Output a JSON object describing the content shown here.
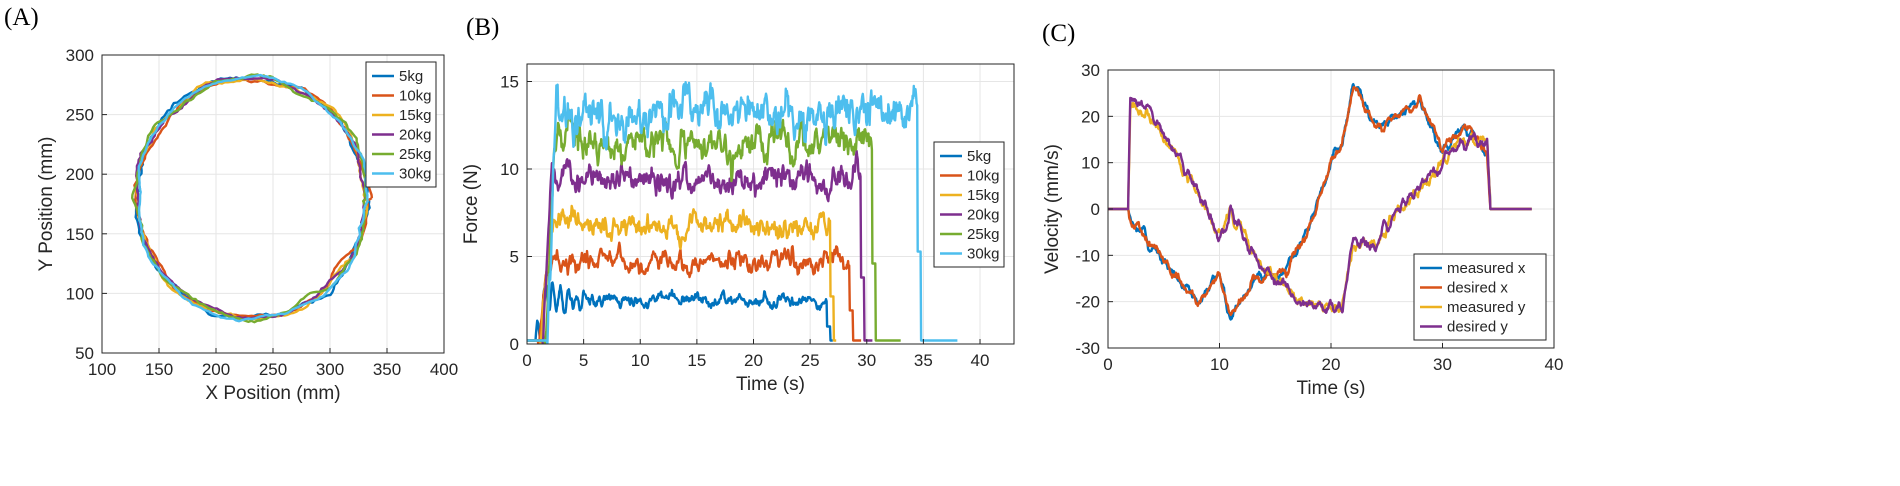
{
  "panels": {
    "a": "(A)",
    "b": "(B)",
    "c": "(C)"
  },
  "colors": {
    "blue": "#0072BD",
    "orange": "#D95319",
    "yellow": "#EDB120",
    "purple": "#7E2F8E",
    "green": "#77AC30",
    "cyan": "#4DBEEE"
  },
  "chart_data": [
    {
      "type": "line",
      "panel": "(A)",
      "title": "",
      "xlabel": "X Position (mm)",
      "ylabel": "Y Position (mm)",
      "xlim": [
        100,
        400
      ],
      "ylim": [
        50,
        300
      ],
      "xticks": [
        100,
        150,
        200,
        250,
        300,
        350,
        400
      ],
      "yticks": [
        50,
        100,
        150,
        200,
        250,
        300
      ],
      "grid": true,
      "legend_position": "top-right",
      "series": [
        {
          "name": "5kg",
          "color": "#0072BD",
          "center": [
            231,
            180
          ],
          "radius": 101,
          "jitter": 4.0,
          "seed": 1
        },
        {
          "name": "10kg",
          "color": "#D95319",
          "center": [
            231,
            180
          ],
          "radius": 100,
          "jitter": 3.0,
          "seed": 2
        },
        {
          "name": "15kg",
          "color": "#EDB120",
          "center": [
            231,
            180
          ],
          "radius": 101,
          "jitter": 3.5,
          "seed": 3
        },
        {
          "name": "20kg",
          "color": "#7E2F8E",
          "center": [
            231,
            180
          ],
          "radius": 100,
          "jitter": 3.0,
          "seed": 4
        },
        {
          "name": "25kg",
          "color": "#77AC30",
          "center": [
            231,
            180
          ],
          "radius": 101,
          "jitter": 3.5,
          "seed": 5
        },
        {
          "name": "30kg",
          "color": "#4DBEEE",
          "center": [
            231,
            180
          ],
          "radius": 101,
          "jitter": 3.0,
          "seed": 6
        }
      ]
    },
    {
      "type": "line",
      "panel": "(B)",
      "title": "",
      "xlabel": "Time (s)",
      "ylabel": "Force (N)",
      "xlim": [
        0,
        43
      ],
      "ylim": [
        0,
        16
      ],
      "xticks": [
        0,
        5,
        10,
        15,
        20,
        25,
        30,
        35,
        40
      ],
      "yticks": [
        0,
        5,
        10,
        15
      ],
      "grid": true,
      "legend_position": "right",
      "series": [
        {
          "name": "5kg",
          "color": "#0072BD",
          "mean": 2.5,
          "amplitude": 0.45,
          "start": 0.8,
          "end": 26.5,
          "tail_end": 27.0,
          "seed": 11
        },
        {
          "name": "10kg",
          "color": "#D95319",
          "mean": 4.8,
          "amplitude": 0.7,
          "start": 1.0,
          "end": 28.5,
          "tail_end": 29.5,
          "seed": 12
        },
        {
          "name": "15kg",
          "color": "#EDB120",
          "mean": 6.8,
          "amplitude": 0.9,
          "start": 1.2,
          "end": 26.8,
          "tail_end": 27.3,
          "seed": 13
        },
        {
          "name": "20kg",
          "color": "#7E2F8E",
          "mean": 9.5,
          "amplitude": 1.0,
          "start": 1.4,
          "end": 29.5,
          "tail_end": 30.5,
          "seed": 14
        },
        {
          "name": "25kg",
          "color": "#77AC30",
          "mean": 11.5,
          "amplitude": 1.3,
          "start": 1.6,
          "end": 30.5,
          "tail_end": 33.0,
          "seed": 15
        },
        {
          "name": "30kg",
          "color": "#4DBEEE",
          "mean": 13.2,
          "amplitude": 1.6,
          "start": 1.8,
          "end": 34.5,
          "tail_end": 38.0,
          "seed": 16
        }
      ]
    },
    {
      "type": "line",
      "panel": "(C)",
      "title": "",
      "xlabel": "Time (s)",
      "ylabel": "Velocity (mm/s)",
      "xlim": [
        0,
        40
      ],
      "ylim": [
        -30,
        30
      ],
      "xticks": [
        0,
        10,
        20,
        30,
        40
      ],
      "yticks": [
        -30,
        -20,
        -10,
        0,
        10,
        20,
        30
      ],
      "grid": true,
      "legend_position": "bottom-right",
      "series": [
        {
          "name": "measured x",
          "color": "#0072BD",
          "component": "x",
          "noise": 1.0,
          "seed": 21,
          "x": [
            0,
            1.8,
            2.0,
            4.0,
            6.0,
            8.0,
            10.0,
            11.0,
            13.0,
            15.0,
            16.0,
            18.0,
            20.0,
            21.0,
            22.0,
            24.0,
            26.0,
            28.0,
            30.0,
            32.0,
            34.0,
            34.3,
            38.0
          ],
          "y": [
            0,
            0,
            -2,
            -8,
            -14,
            -20,
            -14,
            -24,
            -15,
            -14,
            -13,
            -5,
            10,
            14,
            27,
            18,
            20,
            23,
            13,
            18,
            12,
            0,
            0
          ]
        },
        {
          "name": "desired x",
          "color": "#D95319",
          "component": "x",
          "noise": 1.0,
          "seed": 22,
          "x": [
            0,
            1.8,
            2.0,
            4.0,
            6.0,
            8.0,
            10.0,
            11.0,
            13.0,
            15.0,
            16.0,
            18.0,
            20.0,
            21.0,
            22.0,
            24.0,
            26.0,
            28.0,
            30.0,
            32.0,
            34.0,
            34.3,
            38.0
          ],
          "y": [
            0,
            0,
            -2,
            -8,
            -14,
            -20,
            -14,
            -24,
            -15,
            -14,
            -13,
            -5,
            10,
            14,
            27,
            18,
            20,
            23,
            13,
            18,
            12,
            0,
            0
          ]
        },
        {
          "name": "measured y",
          "color": "#EDB120",
          "component": "y",
          "noise": 1.1,
          "seed": 23,
          "x": [
            0,
            1.8,
            2.0,
            4.0,
            6.0,
            8.0,
            10.0,
            11.0,
            13.0,
            15.0,
            17.0,
            19.0,
            21.0,
            22.0,
            24.0,
            26.0,
            28.0,
            30.0,
            31.5,
            33.0,
            34.0,
            34.3,
            38.0
          ],
          "y": [
            0,
            0,
            22,
            20,
            12,
            4,
            -6,
            0,
            -10,
            -15,
            -20,
            -21,
            -21,
            -7,
            -8,
            0,
            5,
            10,
            14,
            15,
            15,
            0,
            0
          ]
        },
        {
          "name": "desired y",
          "color": "#7E2F8E",
          "component": "y",
          "noise": 1.1,
          "seed": 24,
          "x": [
            0,
            1.8,
            2.0,
            4.0,
            6.0,
            8.0,
            10.0,
            11.0,
            13.0,
            15.0,
            17.0,
            19.0,
            21.0,
            22.0,
            24.0,
            26.0,
            28.0,
            30.0,
            31.5,
            33.0,
            34.0,
            34.3,
            38.0
          ],
          "y": [
            0,
            0,
            24,
            21,
            12,
            4,
            -6,
            0,
            -10,
            -15,
            -20,
            -21,
            -21,
            -7,
            -8,
            0,
            5,
            10,
            14,
            15,
            15,
            0,
            0
          ]
        }
      ]
    }
  ]
}
